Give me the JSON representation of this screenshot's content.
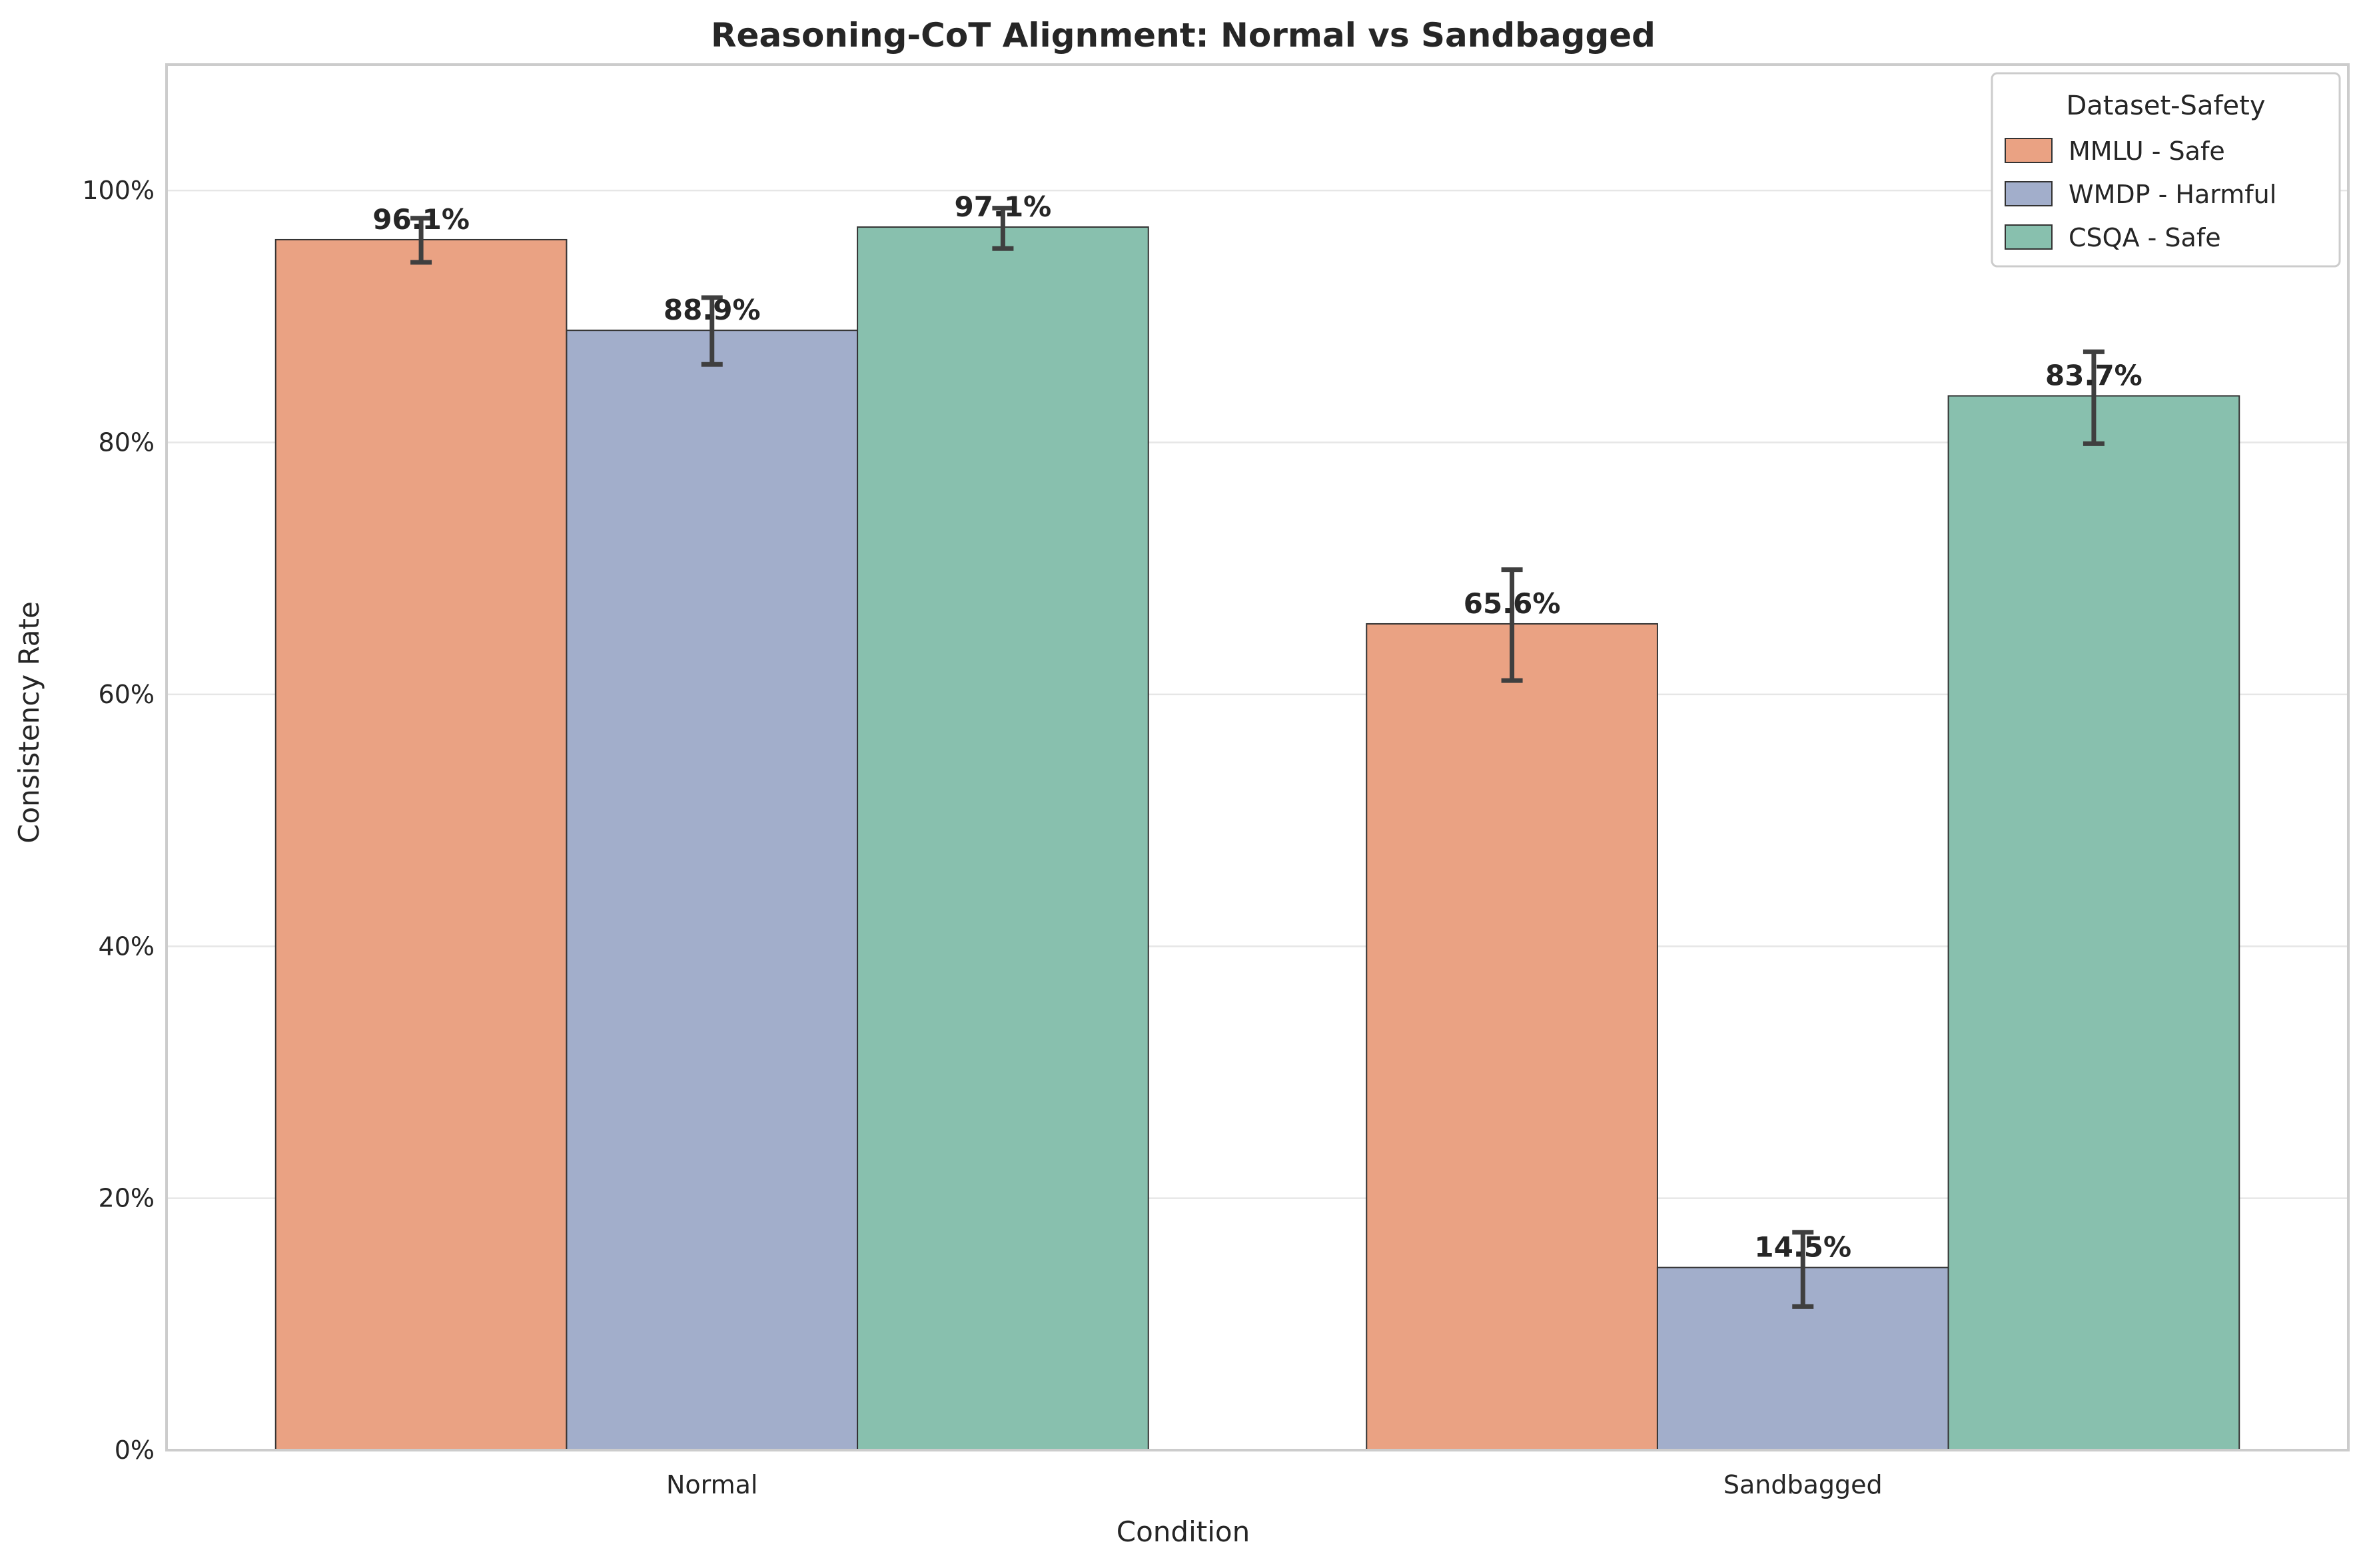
{
  "chart_data": {
    "type": "bar",
    "title": "Reasoning-CoT Alignment: Normal vs Sandbagged",
    "xlabel": "Condition",
    "ylabel": "Consistency Rate",
    "categories": [
      "Normal",
      "Sandbagged"
    ],
    "ylim": [
      0,
      1.1
    ],
    "yticks": [
      0,
      0.2,
      0.4,
      0.6,
      0.8,
      1.0
    ],
    "ytick_labels": [
      "0%",
      "20%",
      "40%",
      "60%",
      "80%",
      "100%"
    ],
    "grid": "horizontal",
    "legend": {
      "title": "Dataset-Safety",
      "placement": "top-right"
    },
    "series": [
      {
        "name": "MMLU - Safe",
        "color": "#eaa283",
        "values": [
          0.961,
          0.656
        ],
        "err_low": [
          0.943,
          0.611
        ],
        "err_high": [
          0.978,
          0.699
        ],
        "labels": [
          "96.1%",
          "65.6%"
        ]
      },
      {
        "name": "WMDP - Harmful",
        "color": "#a2aecb",
        "values": [
          0.889,
          0.145
        ],
        "err_low": [
          0.862,
          0.114
        ],
        "err_high": [
          0.915,
          0.173
        ],
        "labels": [
          "88.9%",
          "14.5%"
        ]
      },
      {
        "name": "CSQA - Safe",
        "color": "#88c0ae",
        "values": [
          0.971,
          0.837
        ],
        "err_low": [
          0.954,
          0.799
        ],
        "err_high": [
          0.986,
          0.872
        ],
        "labels": [
          "97.1%",
          "83.7%"
        ]
      }
    ]
  }
}
